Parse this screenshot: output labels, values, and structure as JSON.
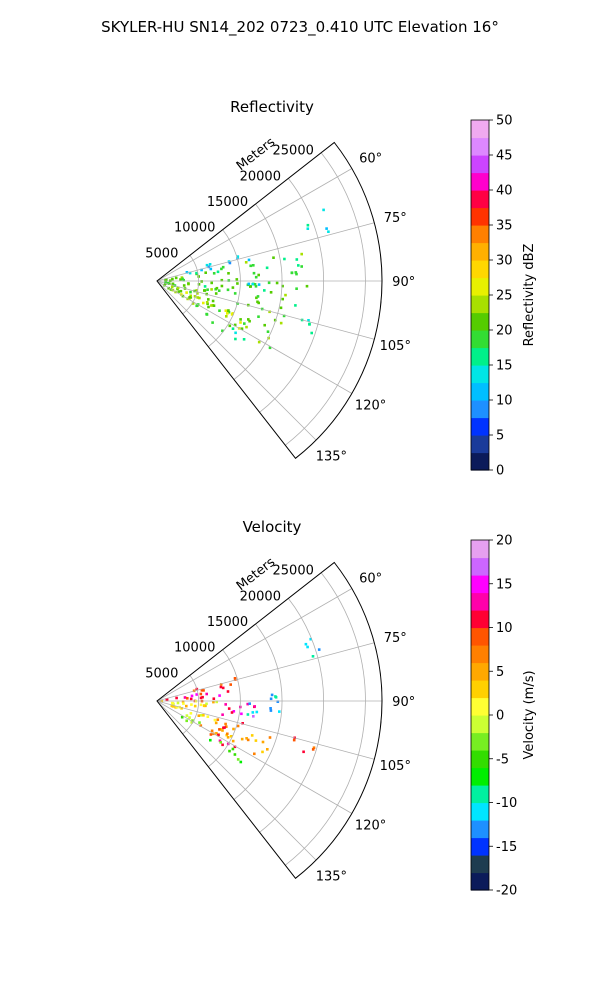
{
  "figure": {
    "title": "SKYLER-HU  SN14_202  0723_0.410 UTC Elevation 16°"
  },
  "chart_data": [
    {
      "type": "scatter",
      "subtype": "polar-sector-radar-ppi",
      "title": "Reflectivity",
      "radial_label": "Meters",
      "radial_ticks": [
        "5000",
        "10000",
        "15000",
        "20000",
        "25000"
      ],
      "radial_range": [
        0,
        27000
      ],
      "angle_ticks": [
        "60°",
        "75°",
        "90°",
        "105°",
        "120°",
        "135°"
      ],
      "angle_range_deg": [
        52,
        142
      ],
      "grid": true,
      "colorbar": {
        "label": "Reflectivity dBZ",
        "min": 0,
        "max": 50,
        "ticks": [
          "0",
          "5",
          "10",
          "15",
          "20",
          "25",
          "30",
          "35",
          "40",
          "45",
          "50"
        ]
      },
      "echo_regions": [
        {
          "azimuth_deg": [
            72,
            78
          ],
          "range_m": [
            2000,
            12000
          ],
          "value": 12
        },
        {
          "azimuth_deg": [
            78,
            100
          ],
          "range_m": [
            500,
            18000
          ],
          "value": 20
        },
        {
          "azimuth_deg": [
            100,
            122
          ],
          "range_m": [
            1000,
            16000
          ],
          "value": 21
        },
        {
          "azimuth_deg": [
            110,
            122
          ],
          "range_m": [
            3000,
            12000
          ],
          "value": 24
        },
        {
          "azimuth_deg": [
            122,
            128
          ],
          "range_m": [
            6000,
            13000
          ],
          "value": 16
        },
        {
          "azimuth_deg": [
            66,
            74
          ],
          "range_m": [
            19000,
            22000
          ],
          "value": 15
        },
        {
          "azimuth_deg": [
            88,
            96
          ],
          "range_m": [
            11000,
            13500
          ],
          "value": 13
        },
        {
          "azimuth_deg": [
            104,
            112
          ],
          "range_m": [
            17000,
            20000
          ],
          "value": 15
        }
      ]
    },
    {
      "type": "scatter",
      "subtype": "polar-sector-radar-ppi",
      "title": "Velocity",
      "radial_label": "Meters",
      "radial_ticks": [
        "5000",
        "10000",
        "15000",
        "20000",
        "25000"
      ],
      "radial_range": [
        0,
        27000
      ],
      "angle_ticks": [
        "60°",
        "75°",
        "90°",
        "105°",
        "120°",
        "135°"
      ],
      "angle_range_deg": [
        52,
        142
      ],
      "grid": true,
      "colorbar": {
        "label": "Velocity (m/s)",
        "min": -20,
        "max": 20,
        "ticks": [
          "-20",
          "-15",
          "-10",
          "-5",
          "0",
          "5",
          "10",
          "15",
          "20"
        ]
      },
      "echo_regions": [
        {
          "azimuth_deg": [
            72,
            78
          ],
          "range_m": [
            4000,
            12000
          ],
          "value": 9
        },
        {
          "azimuth_deg": [
            78,
            90
          ],
          "range_m": [
            1000,
            9000
          ],
          "value": 12
        },
        {
          "azimuth_deg": [
            90,
            110
          ],
          "range_m": [
            500,
            8000
          ],
          "value": 2
        },
        {
          "azimuth_deg": [
            90,
            105
          ],
          "range_m": [
            8000,
            12000
          ],
          "value": 14
        },
        {
          "azimuth_deg": [
            84,
            100
          ],
          "range_m": [
            11000,
            15000
          ],
          "value": -11
        },
        {
          "azimuth_deg": [
            106,
            120
          ],
          "range_m": [
            5000,
            15000
          ],
          "value": 5
        },
        {
          "azimuth_deg": [
            110,
            124
          ],
          "range_m": [
            7000,
            11000
          ],
          "value": 10
        },
        {
          "azimuth_deg": [
            114,
            124
          ],
          "range_m": [
            2000,
            6000
          ],
          "value": -3
        },
        {
          "azimuth_deg": [
            122,
            128
          ],
          "range_m": [
            7000,
            13000
          ],
          "value": -4
        },
        {
          "azimuth_deg": [
            66,
            74
          ],
          "range_m": [
            19000,
            22000
          ],
          "value": -11
        },
        {
          "azimuth_deg": [
            104,
            112
          ],
          "range_m": [
            17000,
            20000
          ],
          "value": 9
        }
      ]
    }
  ]
}
